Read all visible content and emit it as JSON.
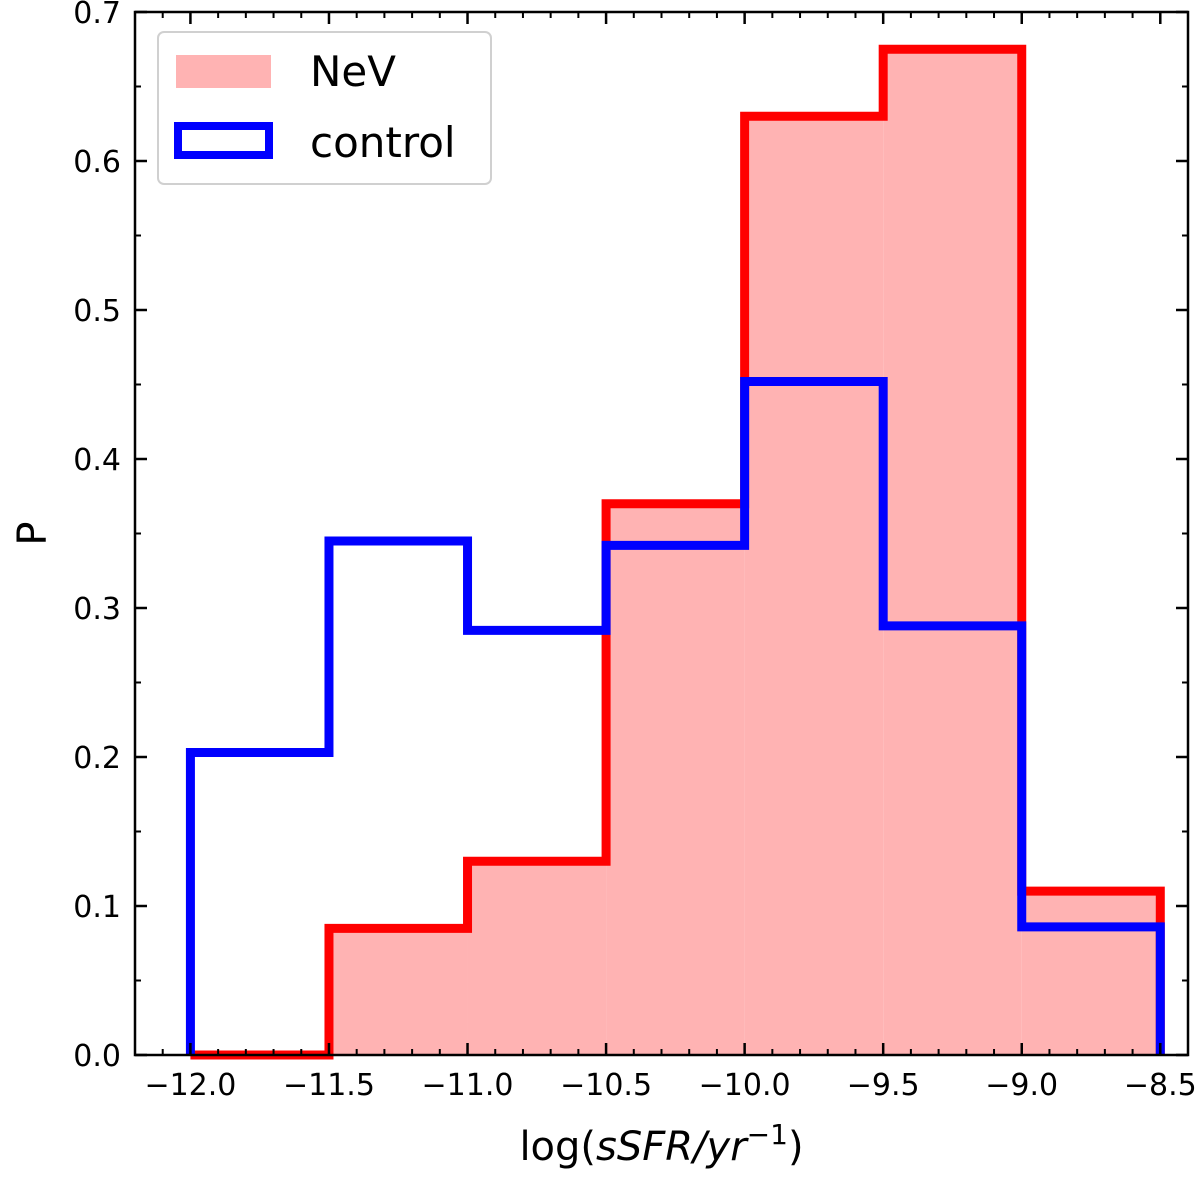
{
  "chart_data": {
    "type": "histogram",
    "xlabel_prefix": "log(",
    "xlabel_italic": "sSFR/yr",
    "xlabel_sup": "−1",
    "xlabel_suffix": ")",
    "ylabel": "P",
    "xlim": [
      -12.2,
      -8.4
    ],
    "ylim": [
      0.0,
      0.7
    ],
    "xticks": [
      -12.0,
      -11.5,
      -11.0,
      -10.5,
      -10.0,
      -9.5,
      -9.0,
      -8.5
    ],
    "xtick_labels": [
      "−12.0",
      "−11.5",
      "−11.0",
      "−10.5",
      "−10.0",
      "−9.5",
      "−9.0",
      "−8.5"
    ],
    "yticks": [
      0.0,
      0.1,
      0.2,
      0.3,
      0.4,
      0.5,
      0.6,
      0.7
    ],
    "ytick_labels": [
      "0.0",
      "0.1",
      "0.2",
      "0.3",
      "0.4",
      "0.5",
      "0.6",
      "0.7"
    ],
    "bin_edges": [
      -12.0,
      -11.5,
      -11.0,
      -10.5,
      -10.0,
      -9.5,
      -9.0,
      -8.5
    ],
    "legend_position": "upper-left",
    "series": [
      {
        "name": "NeV",
        "style": "filled",
        "fill_color": "#ffb3b3",
        "edge_color": "#ff0000",
        "values": [
          0.0,
          0.085,
          0.13,
          0.37,
          0.63,
          0.675,
          0.11
        ]
      },
      {
        "name": "control",
        "style": "step",
        "edge_color": "#0000ff",
        "values": [
          0.203,
          0.345,
          0.285,
          0.342,
          0.452,
          0.288,
          0.086
        ]
      }
    ]
  }
}
